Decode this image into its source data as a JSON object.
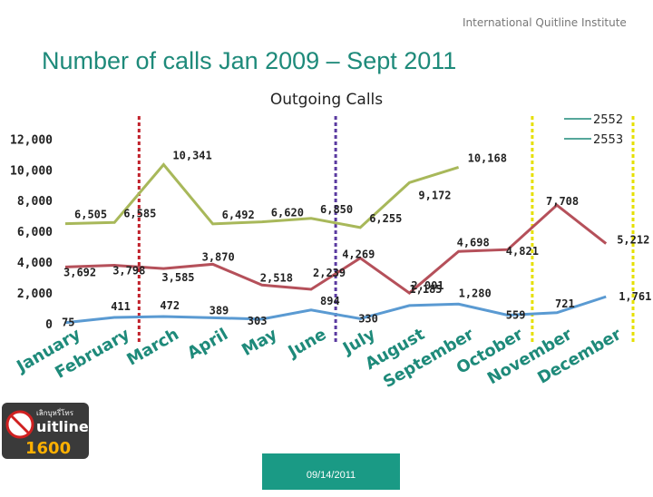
{
  "header": {
    "brand": "International Quitline Institute",
    "title": "Number of calls Jan 2009 – Sept 2011"
  },
  "chart_data": {
    "type": "line",
    "title": "Outgoing Calls",
    "categories": [
      "January",
      "February",
      "March",
      "April",
      "May",
      "June",
      "July",
      "August",
      "September",
      "October",
      "November",
      "December"
    ],
    "y_ticks": [
      "0",
      "2,000",
      "4,000",
      "6,000",
      "8,000",
      "10,000",
      "12,000"
    ],
    "ylim": [
      0,
      12000
    ],
    "legend": {
      "placement": "top-right"
    },
    "series": [
      {
        "name": "2552",
        "color": "#a8b85a",
        "values": [
          6505,
          6585,
          10341,
          6492,
          6620,
          6850,
          6255,
          9172,
          10168,
          null,
          null,
          null
        ],
        "labels": [
          "6,505",
          "6,585",
          "10,341",
          "6,492",
          "6,620",
          "6,850",
          "6,255",
          "9,172",
          "10,168",
          "",
          "",
          ""
        ]
      },
      {
        "name": "2553",
        "color": "#b5505a",
        "values": [
          3692,
          3798,
          3585,
          3870,
          2518,
          2239,
          4269,
          2001,
          4698,
          4821,
          7708,
          5212
        ],
        "labels": [
          "3,692",
          "3,798",
          "3,585",
          "3,870",
          "2,518",
          "2,239",
          "4,269",
          "2,001",
          "4,698",
          "4,821",
          "7,708",
          "5,212"
        ]
      },
      {
        "name": "",
        "color": "#5a9ad2",
        "values": [
          75,
          411,
          472,
          389,
          303,
          894,
          330,
          1185,
          1280,
          559,
          721,
          1761
        ],
        "labels": [
          "75",
          "411",
          "472",
          "389",
          "303",
          "894",
          "330",
          "1,185",
          "1,280",
          "559",
          "721",
          "1,761"
        ]
      }
    ],
    "dashed_markers": [
      {
        "x_between": [
          "February",
          "March"
        ],
        "color": "#c0202a"
      },
      {
        "x_between": [
          "June",
          "July"
        ],
        "color": "#5a3aa0"
      },
      {
        "x_between": [
          "October",
          "November"
        ],
        "color": "#e6e000"
      },
      {
        "x_between": [
          "December",
          "end"
        ],
        "color": "#e6e000"
      }
    ]
  },
  "footer": {
    "date": "09/14/2011"
  },
  "logo": {
    "text_top": "เลิกบุหรี่โทร",
    "text_mid": "uitline",
    "text_num": "1600"
  }
}
